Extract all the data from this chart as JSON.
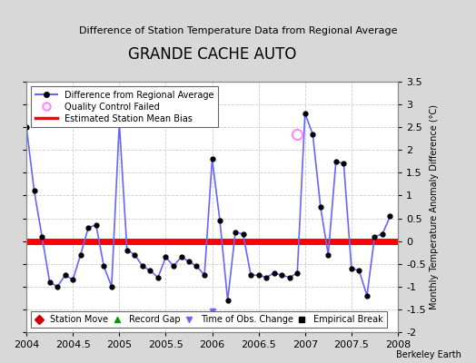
{
  "title": "GRANDE CACHE AUTO",
  "subtitle": "Difference of Station Temperature Data from Regional Average",
  "ylabel_right": "Monthly Temperature Anomaly Difference (°C)",
  "credit": "Berkeley Earth",
  "xlim": [
    2004.0,
    2008.0
  ],
  "ylim": [
    -2.0,
    3.5
  ],
  "yticks": [
    -2,
    -1.5,
    -1,
    -0.5,
    0,
    0.5,
    1,
    1.5,
    2,
    2.5,
    3,
    3.5
  ],
  "xticks": [
    2004,
    2004.5,
    2005,
    2005.5,
    2006,
    2006.5,
    2007,
    2007.5,
    2008
  ],
  "xtick_labels": [
    "2004",
    "2004.5",
    "2005",
    "2005.5",
    "2006",
    "2006.5",
    "2007",
    "2007.5",
    "2008"
  ],
  "mean_bias": 0.0,
  "bias_color": "#ff0000",
  "line_color": "#6666ff",
  "marker_color": "#000000",
  "qc_fail_color": "#ff88ff",
  "plot_bg": "#ffffff",
  "fig_bg": "#d8d8d8",
  "time_series_x": [
    2004.0,
    2004.083,
    2004.167,
    2004.25,
    2004.333,
    2004.417,
    2004.5,
    2004.583,
    2004.667,
    2004.75,
    2004.833,
    2004.917,
    2005.0,
    2005.083,
    2005.167,
    2005.25,
    2005.333,
    2005.417,
    2005.5,
    2005.583,
    2005.667,
    2005.75,
    2005.833,
    2005.917,
    2006.0,
    2006.083,
    2006.167,
    2006.25,
    2006.333,
    2006.417,
    2006.5,
    2006.583,
    2006.667,
    2006.75,
    2006.833,
    2006.917,
    2007.0,
    2007.083,
    2007.167,
    2007.25,
    2007.333,
    2007.417,
    2007.5,
    2007.583,
    2007.667,
    2007.75,
    2007.833,
    2007.917
  ],
  "time_series_y": [
    2.5,
    1.1,
    0.1,
    -0.9,
    -1.0,
    -0.75,
    -0.85,
    -0.3,
    0.3,
    0.35,
    -0.55,
    -1.0,
    2.6,
    -0.2,
    -0.3,
    -0.55,
    -0.65,
    -0.8,
    -0.35,
    -0.55,
    -0.35,
    -0.45,
    -0.55,
    -0.75,
    1.8,
    0.45,
    -1.3,
    0.2,
    0.15,
    -0.75,
    -0.75,
    -0.8,
    -0.7,
    -0.75,
    -0.8,
    -0.7,
    2.8,
    2.35,
    0.75,
    -0.3,
    1.75,
    1.7,
    -0.6,
    -0.65,
    -1.2,
    0.1,
    0.15,
    0.55
  ],
  "qc_fail_x": 2006.917,
  "qc_fail_y": 2.35,
  "time_of_obs_x": [
    2006.0
  ],
  "time_of_obs_y": [
    -1.55
  ]
}
